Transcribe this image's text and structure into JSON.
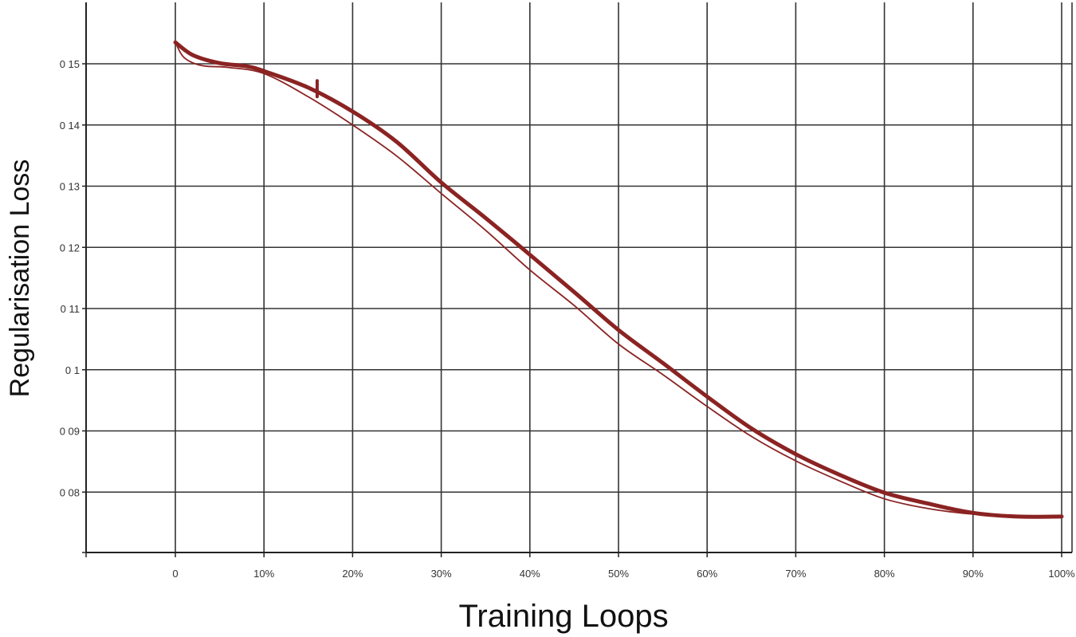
{
  "chart_data": {
    "type": "line",
    "title": "",
    "xlabel": "Training Loops",
    "ylabel": "Regularisation Loss",
    "x_tick_labels": [
      "0",
      "10%",
      "20%",
      "30%",
      "40%",
      "50%",
      "60%",
      "70%",
      "80%",
      "90%",
      "100%"
    ],
    "y_tick_labels": [
      "0 08",
      "0 09",
      "0 1",
      "0 11",
      "0 12",
      "0 13",
      "0 14",
      "0 15"
    ],
    "y_tick_values": [
      0.08,
      0.09,
      0.1,
      0.11,
      0.12,
      0.13,
      0.14,
      0.15
    ],
    "xlim": [
      -10,
      100
    ],
    "ylim": [
      0.071,
      0.161
    ],
    "grid": true,
    "colors": {
      "line": "#8b2323",
      "grid": "#333333",
      "axis": "#222222"
    },
    "series": [
      {
        "style": "thick",
        "x": [
          0,
          2,
          5,
          8,
          10,
          15,
          20,
          25,
          30,
          35,
          40,
          45,
          50,
          55,
          60,
          65,
          70,
          75,
          80,
          85,
          90,
          95,
          100
        ],
        "y": [
          0.1535,
          0.1514,
          0.1501,
          0.1496,
          0.1488,
          0.1461,
          0.1422,
          0.1372,
          0.1306,
          0.1248,
          0.1188,
          0.1127,
          0.1065,
          0.1011,
          0.0956,
          0.0904,
          0.0862,
          0.0828,
          0.0799,
          0.0781,
          0.0766,
          0.076,
          0.076
        ]
      },
      {
        "style": "thin",
        "x": [
          0,
          1,
          3,
          6,
          10,
          15,
          20,
          25,
          30,
          35,
          40,
          45,
          50,
          55,
          60,
          65,
          70,
          75,
          80,
          85,
          90,
          95,
          100
        ],
        "y": [
          0.1535,
          0.151,
          0.1497,
          0.1494,
          0.1484,
          0.1446,
          0.14,
          0.1349,
          0.1288,
          0.1228,
          0.1163,
          0.1105,
          0.1042,
          0.0992,
          0.094,
          0.0891,
          0.0851,
          0.0818,
          0.0789,
          0.0773,
          0.0764,
          0.0761,
          0.076
        ]
      }
    ],
    "marker": {
      "x": 16,
      "y": 0.1458
    }
  }
}
